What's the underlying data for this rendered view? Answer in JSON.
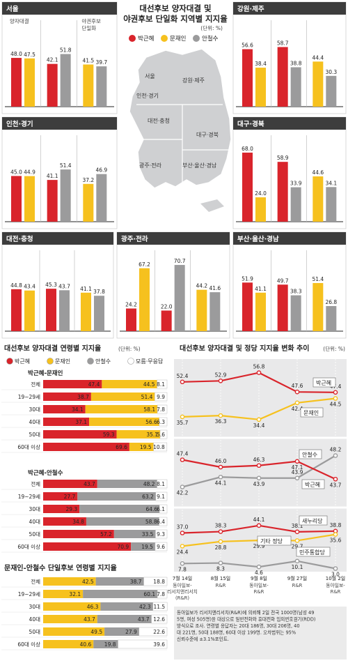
{
  "colors": {
    "park": "#d9242b",
    "moon": "#f6c11e",
    "ahn": "#9b9b9c",
    "undecided": "#ffffff",
    "header": "#3d3d3d",
    "panel_bg": "#e9e9ea"
  },
  "header": {
    "title_line1": "대선후보 양자대결 및",
    "title_line2": "야권후보 단일화 지역별 지지율",
    "unit": "(단위: %)",
    "legend": [
      "박근혜",
      "문재인",
      "안철수"
    ]
  },
  "map_labels": [
    "서울",
    "인천·경기",
    "강원·제주",
    "대전·충청",
    "대구·경북",
    "광주·전라",
    "부산·울산·경남"
  ],
  "chart_data": [
    {
      "type": "bar",
      "title": "서울",
      "groups": [
        {
          "label": "양자대결",
          "values": [
            48.0,
            47.5
          ],
          "colors": [
            "park",
            "moon"
          ]
        },
        {
          "label": "",
          "values": [
            42.1,
            51.8
          ],
          "colors": [
            "park",
            "ahn"
          ]
        },
        {
          "label": "야권후보 단일화",
          "values": [
            41.5,
            39.7
          ],
          "colors": [
            "moon",
            "ahn"
          ]
        }
      ]
    },
    {
      "type": "bar",
      "title": "강원·제주",
      "groups": [
        {
          "label": "",
          "values": [
            56.6,
            38.4
          ],
          "colors": [
            "park",
            "moon"
          ]
        },
        {
          "label": "",
          "values": [
            58.7,
            38.8
          ],
          "colors": [
            "park",
            "ahn"
          ]
        },
        {
          "label": "",
          "values": [
            44.4,
            30.3
          ],
          "colors": [
            "moon",
            "ahn"
          ]
        }
      ]
    },
    {
      "type": "bar",
      "title": "인천·경기",
      "groups": [
        {
          "label": "",
          "values": [
            45.0,
            44.9
          ],
          "colors": [
            "park",
            "moon"
          ]
        },
        {
          "label": "",
          "values": [
            41.1,
            51.4
          ],
          "colors": [
            "park",
            "ahn"
          ]
        },
        {
          "label": "",
          "values": [
            37.2,
            46.9
          ],
          "colors": [
            "moon",
            "ahn"
          ]
        }
      ]
    },
    {
      "type": "bar",
      "title": "대구·경북",
      "groups": [
        {
          "label": "",
          "values": [
            68.0,
            24.0
          ],
          "colors": [
            "park",
            "moon"
          ]
        },
        {
          "label": "",
          "values": [
            58.9,
            33.9
          ],
          "colors": [
            "park",
            "ahn"
          ]
        },
        {
          "label": "",
          "values": [
            44.6,
            34.1
          ],
          "colors": [
            "moon",
            "ahn"
          ]
        }
      ]
    },
    {
      "type": "bar",
      "title": "대전·충청",
      "groups": [
        {
          "label": "",
          "values": [
            44.8,
            43.4
          ],
          "colors": [
            "park",
            "moon"
          ]
        },
        {
          "label": "",
          "values": [
            45.3,
            43.7
          ],
          "colors": [
            "park",
            "ahn"
          ]
        },
        {
          "label": "",
          "values": [
            41.1,
            37.8
          ],
          "colors": [
            "moon",
            "ahn"
          ]
        }
      ]
    },
    {
      "type": "bar",
      "title": "광주·전라",
      "groups": [
        {
          "label": "",
          "values": [
            24.2,
            67.2
          ],
          "colors": [
            "park",
            "moon"
          ]
        },
        {
          "label": "",
          "values": [
            22.0,
            70.7
          ],
          "colors": [
            "park",
            "ahn"
          ]
        },
        {
          "label": "",
          "values": [
            44.2,
            41.6
          ],
          "colors": [
            "moon",
            "ahn"
          ]
        }
      ]
    },
    {
      "type": "bar",
      "title": "부산·울산·경남",
      "groups": [
        {
          "label": "",
          "values": [
            51.9,
            41.1
          ],
          "colors": [
            "park",
            "moon"
          ]
        },
        {
          "label": "",
          "values": [
            49.7,
            38.3
          ],
          "colors": [
            "park",
            "ahn"
          ]
        },
        {
          "label": "",
          "values": [
            51.4,
            26.8
          ],
          "colors": [
            "moon",
            "ahn"
          ]
        }
      ]
    },
    {
      "type": "stacked_bar",
      "title": "대선후보 양자대결 연령별 지지율",
      "unit": "(단위: %)",
      "legend": [
        "박근혜",
        "문재인",
        "안철수",
        "모름·무응답"
      ],
      "categories": [
        "전체",
        "19~29세",
        "30대",
        "40대",
        "50대",
        "60대 이상"
      ],
      "sections": [
        {
          "title": "박근혜-문재인",
          "series": [
            {
              "name": "박근혜",
              "color": "park",
              "values": [
                47.4,
                38.7,
                34.1,
                37.1,
                59.3,
                69.6
              ]
            },
            {
              "name": "문재인",
              "color": "moon",
              "values": [
                44.5,
                51.4,
                58.1,
                56.6,
                35.1,
                19.5
              ]
            },
            {
              "name": "모름·무응답",
              "color": "undecided",
              "values": [
                8.1,
                9.9,
                7.8,
                6.3,
                5.6,
                10.8
              ]
            }
          ]
        },
        {
          "title": "박근혜-안철수",
          "series": [
            {
              "name": "박근혜",
              "color": "park",
              "values": [
                43.7,
                27.7,
                29.3,
                34.8,
                57.2,
                70.9
              ]
            },
            {
              "name": "안철수",
              "color": "ahn",
              "values": [
                48.2,
                63.2,
                64.6,
                58.8,
                33.5,
                19.5
              ]
            },
            {
              "name": "모름·무응답",
              "color": "undecided",
              "values": [
                8.1,
                9.1,
                6.1,
                6.4,
                9.3,
                9.6
              ]
            }
          ]
        }
      ]
    },
    {
      "type": "stacked_bar",
      "title": "문재인-안철수 단일후보 연령별 지지율",
      "categories": [
        "전체",
        "19~29세",
        "30대",
        "40대",
        "50대",
        "60대 이상"
      ],
      "series": [
        {
          "name": "문재인",
          "color": "moon",
          "values": [
            42.5,
            32.1,
            46.3,
            43.7,
            49.5,
            40.6
          ]
        },
        {
          "name": "안철수",
          "color": "ahn",
          "values": [
            38.7,
            60.1,
            42.3,
            43.7,
            27.9,
            19.8
          ]
        },
        {
          "name": "모름·무응답",
          "color": "undecided",
          "values": [
            18.8,
            7.8,
            11.5,
            12.6,
            22.6,
            39.6
          ]
        }
      ]
    },
    {
      "type": "line",
      "title": "대선후보 양자대결 및 정당 지지율 변화 추이",
      "unit": "(단위: %)",
      "x": [
        "7월 14일",
        "8월 15일",
        "9월 8일",
        "9월 27일",
        "10월 2일"
      ],
      "x_sources": [
        "동아일보-\n리서치앤리서치\n(R&R)",
        "R&R",
        "동아일보-\nR&R",
        "R&R",
        "동아일보-\nR&R"
      ],
      "panels": [
        {
          "series": [
            {
              "name": "박근혜",
              "color": "park",
              "values": [
                52.4,
                52.9,
                56.8,
                47.6,
                47.4
              ],
              "label": "박근혜"
            },
            {
              "name": "문재인",
              "color": "moon",
              "values": [
                35.7,
                36.3,
                34.4,
                42.4,
                44.5
              ],
              "label": "문재인"
            }
          ],
          "ylim": [
            30,
            60
          ]
        },
        {
          "series": [
            {
              "name": "안철수",
              "color": "ahn",
              "values": [
                42.2,
                44.1,
                43.9,
                43.9,
                48.2
              ],
              "label": "안철수"
            },
            {
              "name": "박근혜",
              "color": "park",
              "values": [
                47.4,
                46.0,
                46.3,
                47.1,
                43.7
              ],
              "label": "박근혜"
            }
          ],
          "ylim": [
            40,
            50
          ]
        },
        {
          "series": [
            {
              "name": "새누리당",
              "color": "park",
              "values": [
                37.0,
                38.3,
                44.1,
                38.1,
                38.8
              ],
              "label": "새누리당"
            },
            {
              "name": "민주통합당",
              "color": "moon",
              "values": [
                24.4,
                28.8,
                29.9,
                29.7,
                35.6
              ],
              "label": "민주통합당"
            },
            {
              "name": "기타 정당",
              "color": "ahn",
              "values": [
                7.8,
                8.3,
                4.6,
                10.1,
                3.0
              ],
              "label": "기타 정당"
            }
          ],
          "ylim": [
            0,
            50
          ]
        }
      ]
    }
  ],
  "footnote": "동아일보가 리서치앤리서치(R&R)에 의뢰해 2일 전국 1000명(남성 495명, 여성 505명)을 대상으로 일반전화와 휴대전화 임의번호걸기(RDD) 방식으로 조사. 연령별 응답자는 20대 186명, 30대 206명, 40대 221명, 50대 188명, 60대 이상 199명. 오차범위는 95% 신뢰수준에 ±3.1%포인트."
}
